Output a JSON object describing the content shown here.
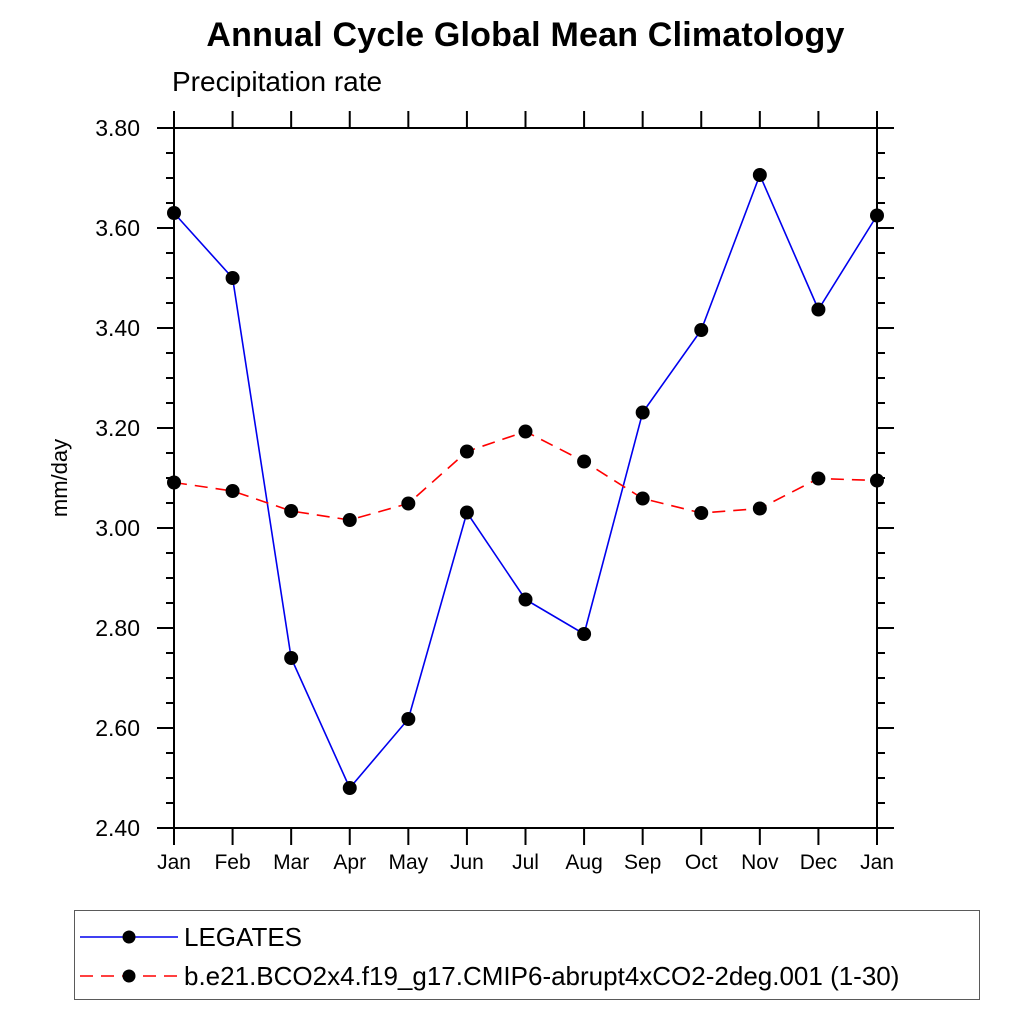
{
  "figure": {
    "title": "Annual Cycle Global Mean Climatology",
    "subtitle": "Precipitation rate"
  },
  "colors": {
    "series1_line": "#0000ee",
    "series2_line": "#ff0000",
    "marker": "#000000",
    "axis": "#000000",
    "text": "#000000",
    "legend_border": "#5a5a5a",
    "background": "#ffffff"
  },
  "chart_data": {
    "type": "line",
    "title": "Annual Cycle Global Mean Climatology",
    "subtitle": "Precipitation rate",
    "xlabel": "",
    "ylabel": "mm/day",
    "categories": [
      "Jan",
      "Feb",
      "Mar",
      "Apr",
      "May",
      "Jun",
      "Jul",
      "Aug",
      "Sep",
      "Oct",
      "Nov",
      "Dec",
      "Jan"
    ],
    "ylim": [
      2.4,
      3.8
    ],
    "ytick_major_step": 0.2,
    "ytick_minor_step": 0.05,
    "ytick_labels": [
      "3.80",
      "3.60",
      "3.40",
      "3.20",
      "3.00",
      "2.80",
      "2.60",
      "2.40"
    ],
    "grid": false,
    "legend_position": "bottom-left-box",
    "series": [
      {
        "name": "LEGATES",
        "color": "#0000ee",
        "style": "solid",
        "marker": "filled-circle",
        "values": [
          3.63,
          3.5,
          2.74,
          2.48,
          2.618,
          3.031,
          2.857,
          2.788,
          3.231,
          3.396,
          3.706,
          3.437,
          3.625
        ]
      },
      {
        "name": "b.e21.BCO2x4.f19_g17.CMIP6-abrupt4xCO2-2deg.001 (1-30)",
        "color": "#ff0000",
        "style": "dashed",
        "marker": "filled-circle",
        "values": [
          3.091,
          3.074,
          3.034,
          3.016,
          3.049,
          3.153,
          3.193,
          3.133,
          3.059,
          3.03,
          3.039,
          3.099,
          3.095
        ]
      }
    ]
  }
}
